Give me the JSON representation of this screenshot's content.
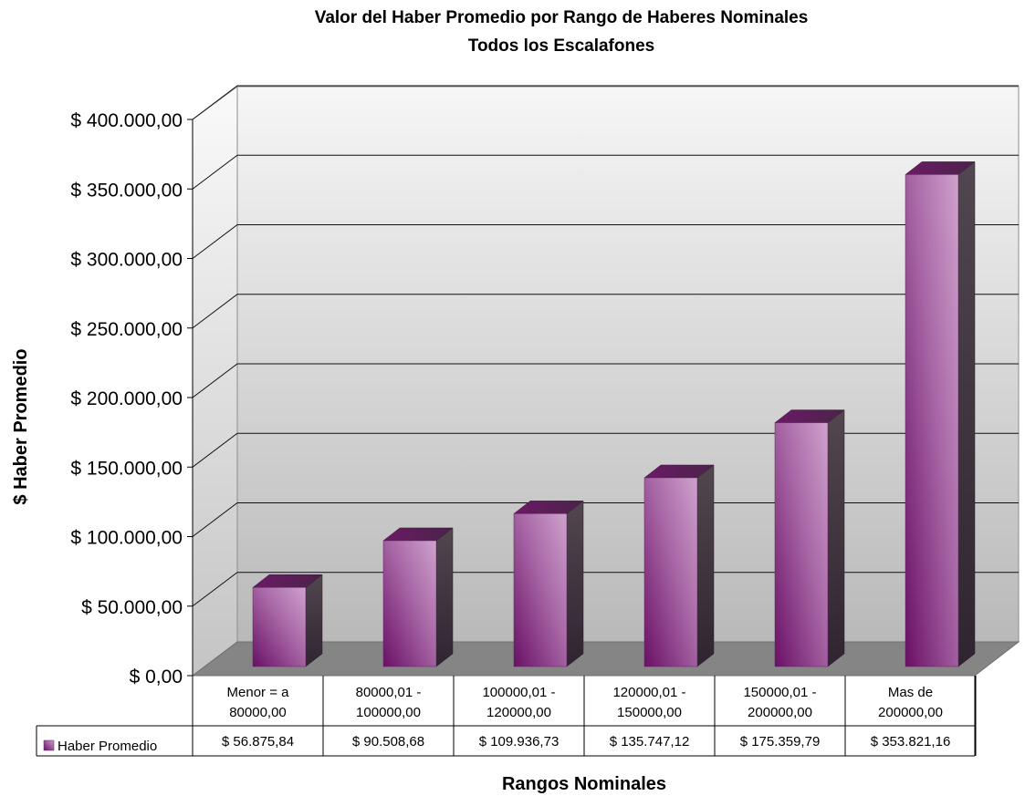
{
  "chart_data": {
    "type": "bar",
    "title": "Valor del Haber Promedio por Rango de Haberes Nominales",
    "subtitle": "Todos los Escalafones",
    "xlabel": "Rangos Nominales",
    "ylabel": "$ Haber Promedio",
    "ylim": [
      0,
      400000
    ],
    "y_ticks": [
      0,
      50000,
      100000,
      150000,
      200000,
      250000,
      300000,
      350000,
      400000
    ],
    "y_tick_labels": [
      "$ 0,00",
      "$ 50.000,00",
      "$ 100.000,00",
      "$ 150.000,00",
      "$ 200.000,00",
      "$ 250.000,00",
      "$ 300.000,00",
      "$ 350.000,00",
      "$ 400.000,00"
    ],
    "categories": [
      [
        "Menor = a",
        "80000,00"
      ],
      [
        "80000,01 -",
        "100000,00"
      ],
      [
        "100000,01 -",
        "120000,00"
      ],
      [
        "120000,01 -",
        "150000,00"
      ],
      [
        "150000,01 -",
        "200000,00"
      ],
      [
        "Mas de",
        "200000,00"
      ]
    ],
    "series": [
      {
        "name": "Haber Promedio",
        "values": [
          56875.84,
          90508.68,
          109936.73,
          135747.12,
          175359.79,
          353821.16
        ],
        "value_labels": [
          "$ 56.875,84",
          "$ 90.508,68",
          "$ 109.936,73",
          "$ 135.747,12",
          "$ 175.359,79",
          "$ 353.821,16"
        ],
        "color": "#9b4f96"
      }
    ],
    "grid": true,
    "legend": "data-table-left",
    "style": "3d-column-with-data-table"
  }
}
